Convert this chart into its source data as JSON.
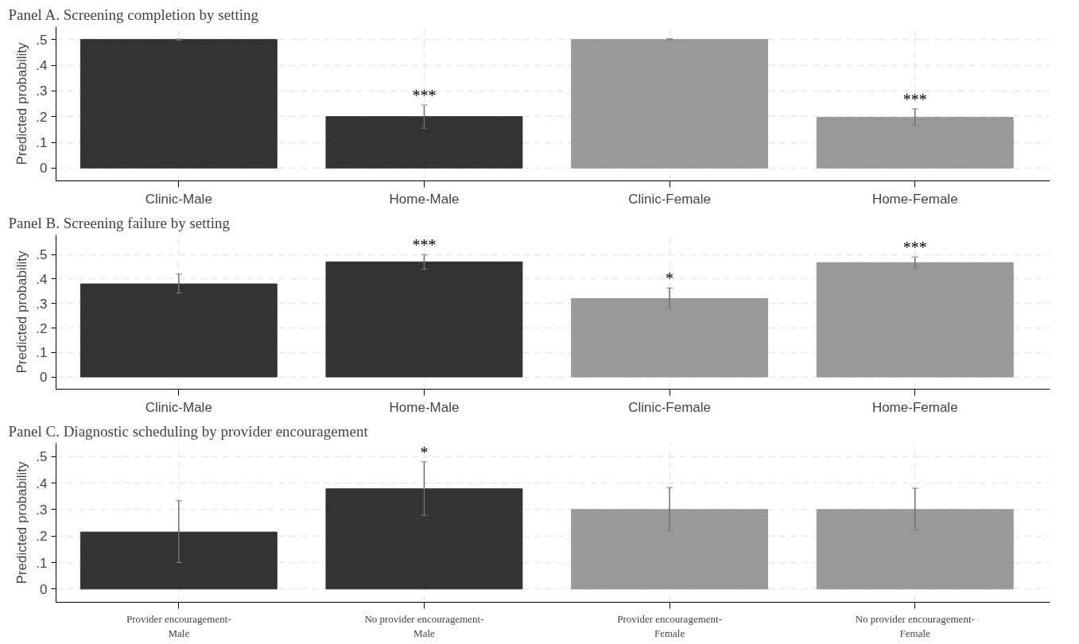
{
  "chart_data": [
    {
      "type": "bar",
      "title": "Panel A. Screening completion by setting",
      "ylabel": "Predicted probability",
      "categories": [
        "Clinic-Male",
        "Home-Male",
        "Clinic-Female",
        "Home-Female"
      ],
      "values": [
        0.5,
        0.2,
        0.5,
        0.197
      ],
      "colors": [
        "#333333",
        "#333333",
        "#999999",
        "#999999"
      ],
      "errors": [
        [
          0.498,
          0.502
        ],
        [
          0.155,
          0.245
        ],
        [
          0.498,
          0.503
        ],
        [
          0.165,
          0.23
        ]
      ],
      "ylim": [
        -0.05,
        0.55
      ],
      "yticks": [
        0,
        {
          "value": 0.1,
          "label": ".1"
        },
        {
          "value": 0.2,
          "label": ".2"
        },
        {
          "value": 0.3,
          "label": ".3"
        },
        {
          "value": 0.4,
          "label": ".4"
        },
        {
          "value": 0.5,
          "label": ".5"
        }
      ],
      "grid": true,
      "value_labels": [
        null,
        "***",
        null,
        "***"
      ]
    },
    {
      "type": "bar",
      "title": "Panel B. Screening failure by setting",
      "ylabel": "Predicted probability",
      "categories": [
        "Clinic-Male",
        "Home-Male",
        "Clinic-Female",
        "Home-Female"
      ],
      "values": [
        0.38,
        0.47,
        0.32,
        0.467
      ],
      "colors": [
        "#333333",
        "#333333",
        "#999999",
        "#999999"
      ],
      "errors": [
        [
          0.343,
          0.42
        ],
        [
          0.44,
          0.5
        ],
        [
          0.283,
          0.363
        ],
        [
          0.445,
          0.49
        ]
      ],
      "ylim": [
        -0.05,
        0.58
      ],
      "yticks": [
        0,
        {
          "value": 0.1,
          "label": ".1"
        },
        {
          "value": 0.2,
          "label": ".2"
        },
        {
          "value": 0.3,
          "label": ".3"
        },
        {
          "value": 0.4,
          "label": ".4"
        },
        {
          "value": 0.5,
          "label": ".5"
        }
      ],
      "grid": true,
      "value_labels": [
        null,
        "***",
        "*",
        "***"
      ]
    },
    {
      "type": "bar",
      "title": "Panel C. Diagnostic scheduling by provider encouragement",
      "ylabel": "Predicted probability",
      "categories": [
        "Provider encouragement-\nMale",
        "No provider encouragement-\nMale",
        "Provider encouragement-\nFemale",
        "No provider encouragement-\nFemale"
      ],
      "values": [
        0.215,
        0.378,
        0.3,
        0.3
      ],
      "colors": [
        "#333333",
        "#333333",
        "#999999",
        "#999999"
      ],
      "errors": [
        [
          0.1,
          0.333
        ],
        [
          0.278,
          0.48
        ],
        [
          0.22,
          0.383
        ],
        [
          0.222,
          0.38
        ]
      ],
      "ylim": [
        -0.05,
        0.55
      ],
      "yticks": [
        0,
        {
          "value": 0.1,
          "label": ".1"
        },
        {
          "value": 0.2,
          "label": ".2"
        },
        {
          "value": 0.3,
          "label": ".3"
        },
        {
          "value": 0.4,
          "label": ".4"
        },
        {
          "value": 0.5,
          "label": ".5"
        }
      ],
      "grid": true,
      "value_labels": [
        null,
        "*",
        null,
        null
      ]
    }
  ]
}
